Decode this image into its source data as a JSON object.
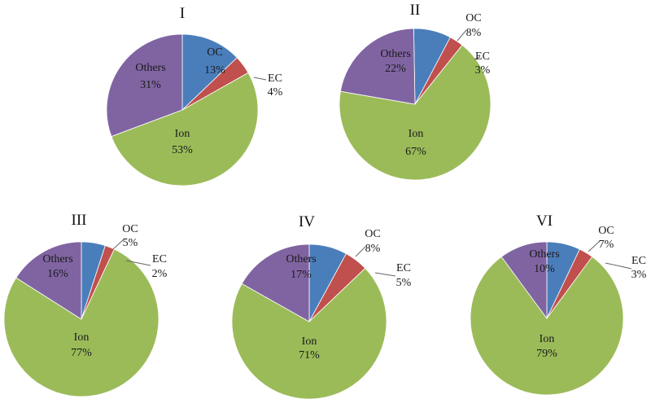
{
  "colors": {
    "OC": "#4a7ebb",
    "EC": "#c0504d",
    "Ion": "#9bbb59",
    "Others": "#8064a2"
  },
  "chart_data": [
    {
      "type": "pie",
      "title": "I",
      "slices": [
        {
          "label": "OC",
          "value": 13,
          "value_label": "13%"
        },
        {
          "label": "EC",
          "value": 4,
          "value_label": "4%"
        },
        {
          "label": "Ion",
          "value": 53,
          "value_label": "53%"
        },
        {
          "label": "Others",
          "value": 31,
          "value_label": "31%"
        }
      ]
    },
    {
      "type": "pie",
      "title": "II",
      "slices": [
        {
          "label": "OC",
          "value": 8,
          "value_label": "8%"
        },
        {
          "label": "EC",
          "value": 3,
          "value_label": "3%"
        },
        {
          "label": "Ion",
          "value": 67,
          "value_label": "67%"
        },
        {
          "label": "Others",
          "value": 22,
          "value_label": "22%"
        }
      ]
    },
    {
      "type": "pie",
      "title": "III",
      "slices": [
        {
          "label": "OC",
          "value": 5,
          "value_label": "5%"
        },
        {
          "label": "EC",
          "value": 2,
          "value_label": "2%"
        },
        {
          "label": "Ion",
          "value": 77,
          "value_label": "77%"
        },
        {
          "label": "Others",
          "value": 16,
          "value_label": "16%"
        }
      ]
    },
    {
      "type": "pie",
      "title": "IV",
      "slices": [
        {
          "label": "OC",
          "value": 8,
          "value_label": "8%"
        },
        {
          "label": "EC",
          "value": 5,
          "value_label": "5%"
        },
        {
          "label": "Ion",
          "value": 71,
          "value_label": "71%"
        },
        {
          "label": "Others",
          "value": 17,
          "value_label": "17%"
        }
      ]
    },
    {
      "type": "pie",
      "title": "VI",
      "slices": [
        {
          "label": "OC",
          "value": 7,
          "value_label": "7%"
        },
        {
          "label": "EC",
          "value": 3,
          "value_label": "3%"
        },
        {
          "label": "Ion",
          "value": 79,
          "value_label": "79%"
        },
        {
          "label": "Others",
          "value": 10,
          "value_label": "10%"
        }
      ]
    }
  ]
}
